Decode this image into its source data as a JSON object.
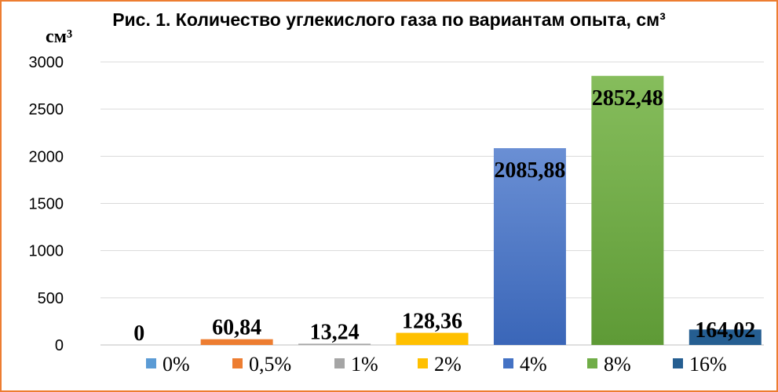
{
  "chart_data": {
    "type": "bar",
    "title": "Рис. 1. Количество углекислого газа по вариантам опыта, см³",
    "ylabel": "см³",
    "xlabel": "",
    "ylim": [
      0,
      3000
    ],
    "yticks": [
      0,
      500,
      1000,
      1500,
      2000,
      2500,
      3000
    ],
    "grid": true,
    "legend_position": "bottom",
    "categories": [
      "0%",
      "0,5%",
      "1%",
      "2%",
      "4%",
      "8%",
      "16%"
    ],
    "values": [
      0,
      60.84,
      13.24,
      128.36,
      2085.88,
      2852.48,
      164.02
    ],
    "data_labels": [
      "0",
      "60,84",
      "13,24",
      "128,36",
      "2085,88",
      "2852,48",
      "164,02"
    ],
    "colors": [
      "#5b9bd5",
      "#ed7d31",
      "#a5a5a5",
      "#ffc000",
      "#4472c4",
      "#70ad47",
      "#255e91"
    ],
    "border_color": "#ed7d31"
  }
}
